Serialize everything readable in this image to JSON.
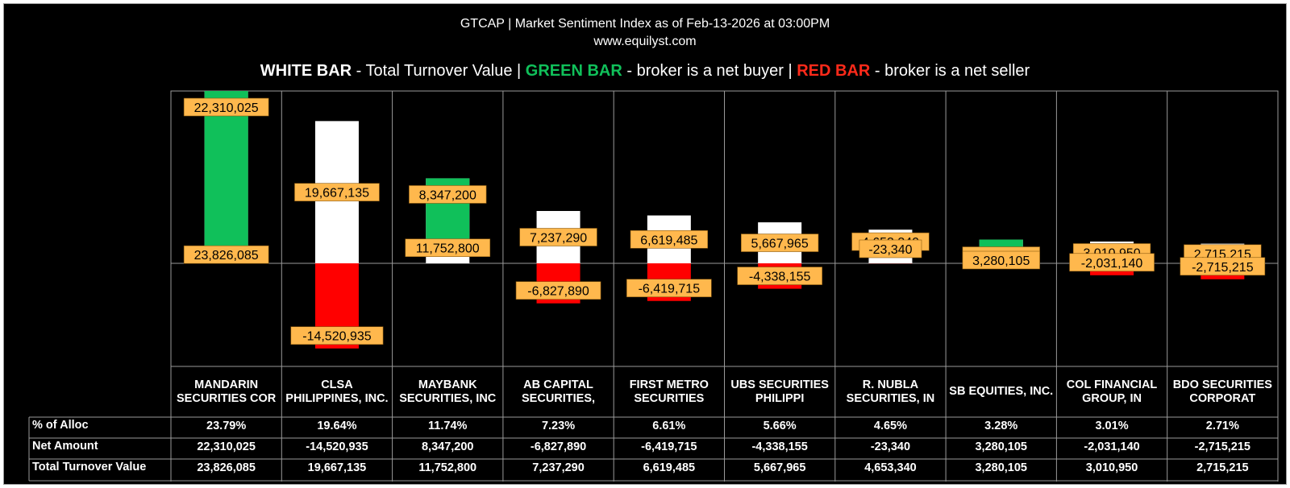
{
  "header": {
    "title": "GTCAP | Market Sentiment Index as of Feb-13-2026 at 03:00PM",
    "site": "www.equilyst.com"
  },
  "legend": {
    "white_key": "WHITE BAR",
    "white_text": " - Total Turnover Value  |  ",
    "green_key": "GREEN BAR",
    "green_text": " -  broker is a net buyer  | ",
    "red_key": "RED BAR",
    "red_text": " - broker is a net seller"
  },
  "colors": {
    "background": "#000000",
    "turnover_bar": "#ffffff",
    "net_buy_bar": "#10c05a",
    "net_sell_bar": "#ff0000",
    "label_box": "#ffb84d"
  },
  "table": {
    "row_labels": [
      "% of Alloc",
      "Net Amount",
      "Total Turnover Value"
    ],
    "alloc": [
      "23.79%",
      "19.64%",
      "11.74%",
      "7.23%",
      "6.61%",
      "5.66%",
      "4.65%",
      "3.28%",
      "3.01%",
      "2.71%"
    ]
  },
  "chart_data": {
    "type": "bar",
    "categories": [
      "MANDARIN SECURITIES COR",
      "CLSA PHILIPPINES, INC.",
      "MAYBANK SECURITIES, INC",
      "AB CAPITAL SECURITIES,",
      "FIRST METRO SECURITIES",
      "UBS SECURITIES PHILIPPI",
      "R. NUBLA SECURITIES, IN",
      "SB EQUITIES, INC.",
      "COL FINANCIAL GROUP, IN",
      "BDO SECURITIES CORPORAT"
    ],
    "series": [
      {
        "name": "Total Turnover Value",
        "values": [
          23826085,
          19667135,
          11752800,
          7237290,
          6619485,
          5667965,
          4653340,
          3280105,
          3010950,
          2715215
        ],
        "labels": [
          "23,826,085",
          "19,667,135",
          "11,752,800",
          "7,237,290",
          "6,619,485",
          "5,667,965",
          "4,653,340",
          "3,280,105",
          "3,010,950",
          "2,715,215"
        ]
      },
      {
        "name": "Net Amount",
        "values": [
          22310025,
          -14520935,
          8347200,
          -6827890,
          -6419715,
          -4338155,
          -23340,
          3280105,
          -2031140,
          -2715215
        ],
        "labels": [
          "22,310,025",
          "-14,520,935",
          "8,347,200",
          "-6,827,890",
          "-6,419,715",
          "-4,338,155",
          "-23,340",
          "3,280,105",
          "-2,031,140",
          "-2,715,215"
        ]
      }
    ]
  }
}
